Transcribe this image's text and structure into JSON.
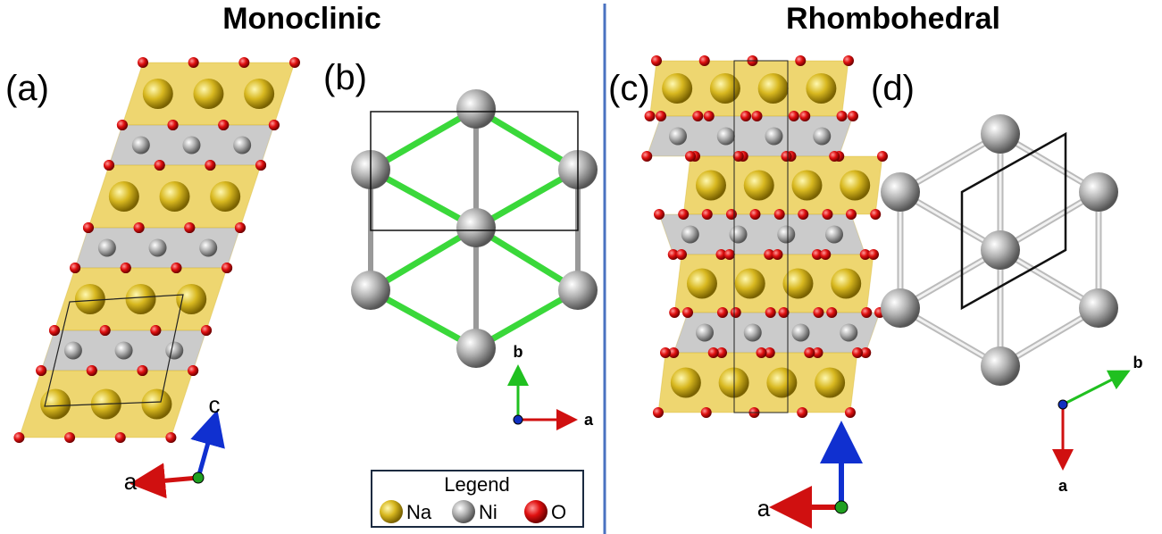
{
  "titles": {
    "left": "Monoclinic",
    "right": "Rhombohedral"
  },
  "panels": [
    {
      "label": "(a)",
      "axes": [
        "c",
        "a"
      ]
    },
    {
      "label": "(b)",
      "axes": [
        "b",
        "a"
      ]
    },
    {
      "label": "(c)",
      "axes": [
        "a"
      ]
    },
    {
      "label": "(d)",
      "axes": [
        "b",
        "a"
      ]
    }
  ],
  "legend": {
    "title": "Legend",
    "items": [
      "Na",
      "Ni",
      "O"
    ]
  }
}
